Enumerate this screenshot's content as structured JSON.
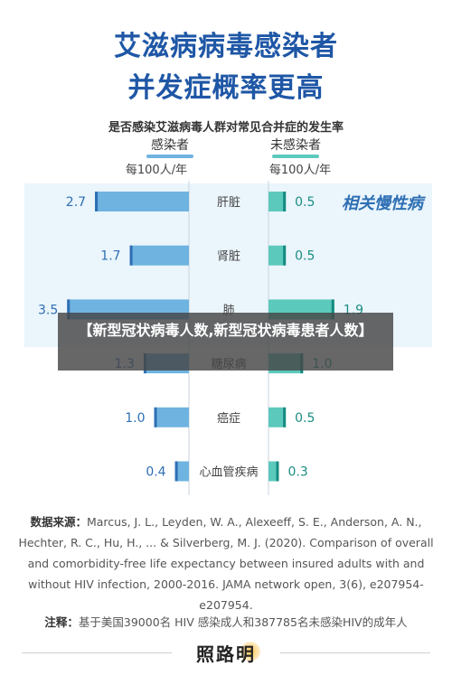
{
  "header": {
    "title_line1": "艾滋病病毒感染者",
    "title_line2": "并发症概率更高",
    "subtitle": "是否感染艾滋病毒人群对常见合并症的发生率"
  },
  "columns": {
    "left_label": "感染者",
    "right_label": "未感染者",
    "left_unit": "每100人/年",
    "right_unit": "每100人/年"
  },
  "group_label": "相关慢性病",
  "chart_data": {
    "type": "bar",
    "orientation": "horizontal-butterfly",
    "categories": [
      "肝脏",
      "肾脏",
      "肺",
      "糖尿病",
      "癌症",
      "心血管疾病"
    ],
    "series": [
      {
        "name": "感染者",
        "values": [
          2.7,
          1.7,
          3.5,
          1.3,
          1.0,
          0.4
        ],
        "labels": [
          "2.7",
          "1.7",
          "3.5",
          "1.3",
          "1.0",
          "0.4"
        ]
      },
      {
        "name": "未感染者",
        "values": [
          0.5,
          0.5,
          1.9,
          1.0,
          0.5,
          0.3
        ],
        "labels": [
          "0.5",
          "0.5",
          "1.9",
          "1.0",
          "0.5",
          "0.3"
        ]
      }
    ],
    "highlight_group": {
      "label": "相关慢性病",
      "categories": [
        "肝脏",
        "肾脏",
        "肺"
      ]
    },
    "colors": {
      "infected": "#6fb3e0",
      "infected_dark": "#2e6fb3",
      "uninfected": "#5cc9bd",
      "uninfected_dark": "#168a80",
      "highlight_bg": "#eaf5fc"
    }
  },
  "watermark": "【新型冠状病毒人数,新型冠状病毒患者人数】",
  "source": {
    "label": "数据来源：",
    "text": "Marcus, J. L., Leyden, W. A., Alexeeff, S. E., Anderson, A. N., Hechter, R. C., Hu, H., ... & Silverberg, M. J. (2020). Comparison of overall and comorbidity-free life expectancy between insured adults with and without HIV infection, 2000-2016. JAMA network open, 3(6), e207954-e207954."
  },
  "note": {
    "label": "注释：",
    "text": "基于美国39000名 HIV 感染成人和387785名未感染HIV的成年人"
  },
  "logo": "照路明"
}
